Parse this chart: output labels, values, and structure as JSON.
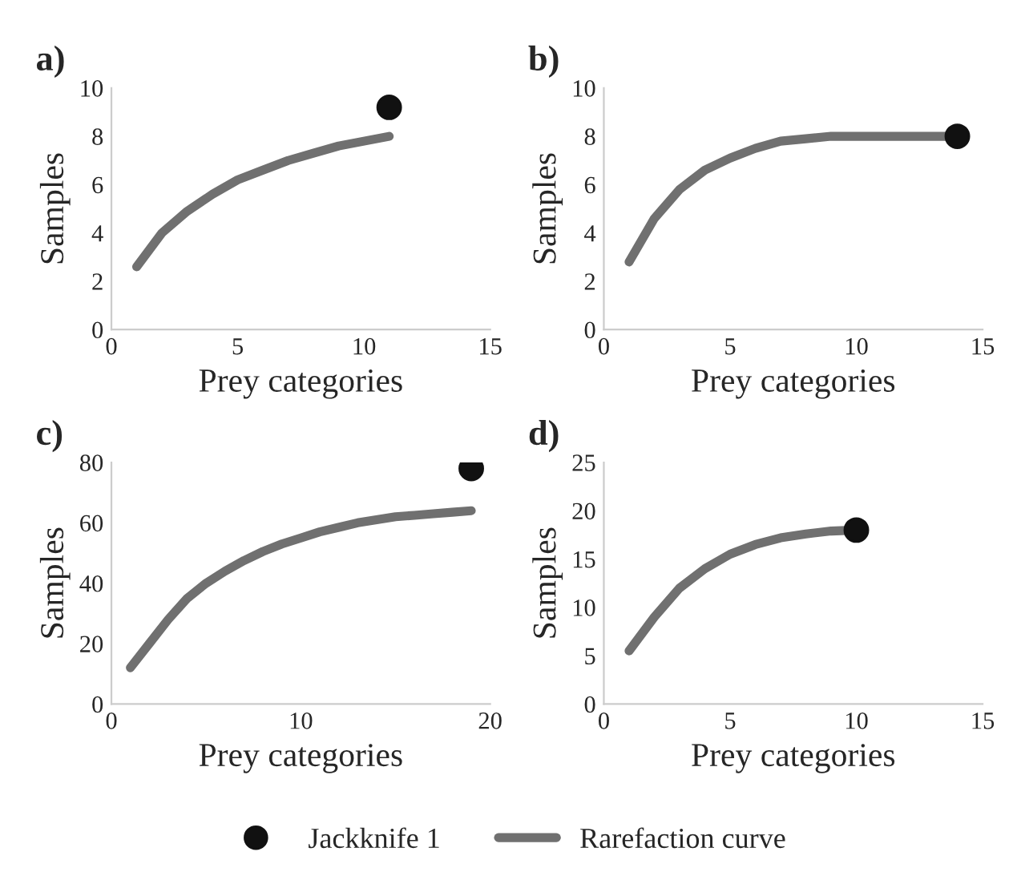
{
  "chart_data": [
    {
      "type": "line",
      "title": "a)",
      "xlabel": "Prey categories",
      "ylabel": "Samples",
      "xlim": [
        0,
        15
      ],
      "xticks": [
        0,
        5,
        10,
        15
      ],
      "ylim": [
        0,
        10
      ],
      "yticks": [
        0,
        2,
        4,
        6,
        8,
        10
      ],
      "legend": "bottom",
      "series": [
        {
          "name": "Jackknife 1",
          "type": "scatter",
          "color": "#111111",
          "marker": "circle",
          "x": [
            11
          ],
          "values": [
            9.2
          ]
        },
        {
          "name": "Rarefaction curve",
          "color": "#707070",
          "x": [
            1,
            2,
            3,
            4,
            5,
            6,
            7,
            8,
            9,
            10,
            11
          ],
          "values": [
            2.6,
            4.0,
            4.9,
            5.6,
            6.2,
            6.6,
            7.0,
            7.3,
            7.6,
            7.8,
            8.0
          ]
        }
      ]
    },
    {
      "type": "line",
      "title": "b)",
      "xlabel": "Prey categories",
      "ylabel": "Samples",
      "xlim": [
        0,
        15
      ],
      "xticks": [
        0,
        5,
        10,
        15
      ],
      "ylim": [
        0,
        10
      ],
      "yticks": [
        0,
        2,
        4,
        6,
        8,
        10
      ],
      "series": [
        {
          "type": "scatter",
          "color": "#111111",
          "marker": "circle",
          "x": [
            14
          ],
          "values": [
            8.0
          ]
        },
        {
          "color": "#707070",
          "x": [
            1,
            2,
            3,
            4,
            5,
            6,
            7,
            8,
            9,
            10,
            11,
            12,
            13,
            14
          ],
          "values": [
            2.8,
            4.6,
            5.8,
            6.6,
            7.1,
            7.5,
            7.8,
            7.9,
            8.0,
            8.0,
            8.0,
            8.0,
            8.0,
            8.0
          ]
        }
      ]
    },
    {
      "type": "line",
      "title": "c)",
      "xlabel": "Prey categories",
      "ylabel": "Samples",
      "xlim": [
        0,
        20
      ],
      "xticks": [
        0,
        10,
        20
      ],
      "ylim": [
        0,
        80
      ],
      "yticks": [
        0,
        20,
        40,
        60,
        80
      ],
      "series": [
        {
          "type": "scatter",
          "color": "#111111",
          "marker": "circle",
          "x": [
            19
          ],
          "values": [
            78
          ]
        },
        {
          "color": "#707070",
          "x": [
            1,
            2,
            3,
            4,
            5,
            6,
            7,
            8,
            9,
            10,
            11,
            12,
            13,
            14,
            15,
            16,
            17,
            18,
            19
          ],
          "values": [
            12,
            20,
            28,
            35,
            40,
            44,
            47.5,
            50.5,
            53,
            55,
            57,
            58.5,
            60,
            61,
            62,
            62.5,
            63,
            63.5,
            64
          ]
        }
      ]
    },
    {
      "type": "line",
      "title": "d)",
      "xlabel": "Prey categories",
      "ylabel": "Samples",
      "xlim": [
        0,
        15
      ],
      "xticks": [
        0,
        5,
        10,
        15
      ],
      "ylim": [
        0,
        25
      ],
      "yticks": [
        0,
        5,
        10,
        15,
        20,
        25
      ],
      "series": [
        {
          "type": "scatter",
          "color": "#111111",
          "marker": "circle",
          "x": [
            10
          ],
          "values": [
            18
          ]
        },
        {
          "color": "#707070",
          "x": [
            1,
            2,
            3,
            4,
            5,
            6,
            7,
            8,
            9,
            10
          ],
          "values": [
            5.5,
            9,
            12,
            14,
            15.5,
            16.5,
            17.2,
            17.6,
            17.9,
            18
          ]
        }
      ]
    }
  ]
}
